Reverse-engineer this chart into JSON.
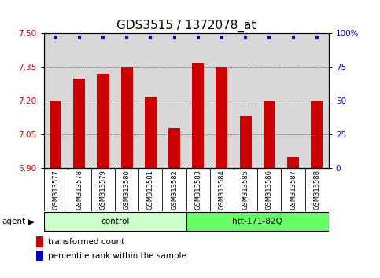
{
  "title": "GDS3515 / 1372078_at",
  "categories": [
    "GSM313577",
    "GSM313578",
    "GSM313579",
    "GSM313580",
    "GSM313581",
    "GSM313582",
    "GSM313583",
    "GSM313584",
    "GSM313585",
    "GSM313586",
    "GSM313587",
    "GSM313588"
  ],
  "bar_values": [
    7.2,
    7.3,
    7.32,
    7.35,
    7.22,
    7.08,
    7.37,
    7.35,
    7.13,
    7.2,
    6.95,
    7.2
  ],
  "percentile_values": [
    97,
    97,
    97,
    97,
    97,
    97,
    97,
    97,
    97,
    97,
    97,
    97
  ],
  "bar_color": "#cc0000",
  "percentile_color": "#0000cc",
  "ylim_left": [
    6.9,
    7.5
  ],
  "ylim_right": [
    0,
    100
  ],
  "yticks_left": [
    6.9,
    7.05,
    7.2,
    7.35,
    7.5
  ],
  "yticks_right": [
    0,
    25,
    50,
    75,
    100
  ],
  "groups": [
    {
      "label": "control",
      "start": 0,
      "end": 6,
      "color": "#ccffcc"
    },
    {
      "label": "htt-171-82Q",
      "start": 6,
      "end": 12,
      "color": "#66ff66"
    }
  ],
  "agent_label": "agent",
  "legend_items": [
    {
      "label": "transformed count",
      "color": "#cc0000"
    },
    {
      "label": "percentile rank within the sample",
      "color": "#0000cc"
    }
  ],
  "bar_width": 0.5,
  "plot_bg_color": "#d8d8d8",
  "sample_bg_color": "#c8c8c8",
  "grid_color": "#000000",
  "title_fontsize": 11,
  "tick_fontsize": 7.5,
  "label_fontsize": 8
}
